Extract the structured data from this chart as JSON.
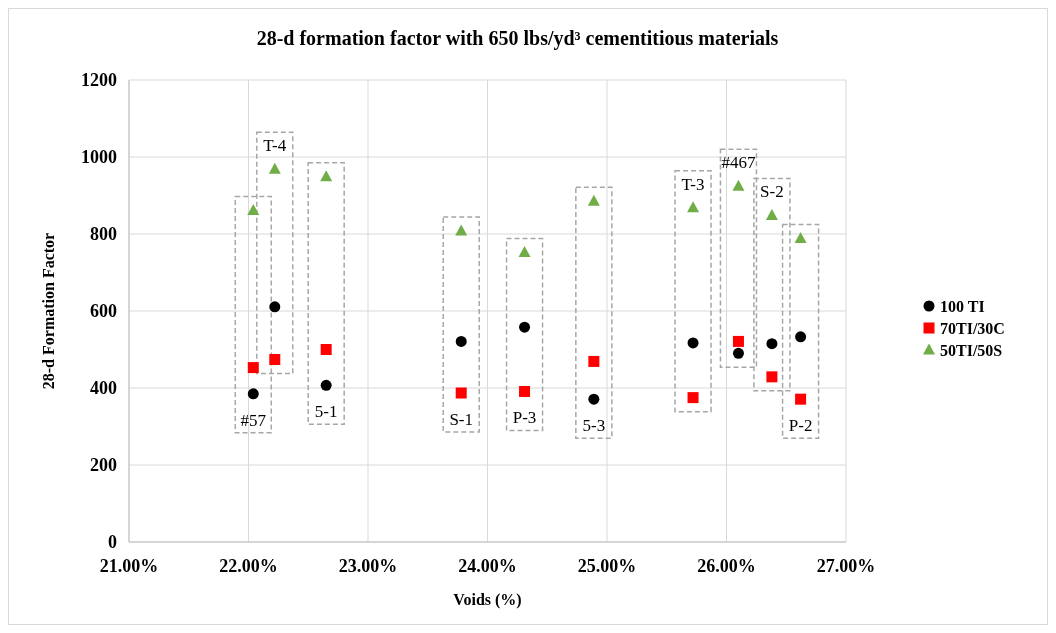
{
  "chart_data": {
    "type": "scatter",
    "title": "28-d formation factor with 650 lbs/yd³ cementitious materials",
    "xlabel": "Voids (%)",
    "ylabel": "28-d Formation Factor",
    "xlim": [
      21,
      27
    ],
    "xticks": [
      {
        "value": 21,
        "label": "21.00%"
      },
      {
        "value": 22,
        "label": "22.00%"
      },
      {
        "value": 23,
        "label": "23.00%"
      },
      {
        "value": 24,
        "label": "24.00%"
      },
      {
        "value": 25,
        "label": "25.00%"
      },
      {
        "value": 26,
        "label": "26.00%"
      },
      {
        "value": 27,
        "label": "27.00%"
      }
    ],
    "ylim": [
      0,
      1200
    ],
    "yticks": [
      0,
      200,
      400,
      600,
      800,
      1000,
      1200
    ],
    "grid": true,
    "legend": "right",
    "x": [
      22.04,
      22.22,
      22.65,
      23.78,
      24.31,
      24.89,
      25.72,
      26.1,
      26.38,
      26.62
    ],
    "series": [
      {
        "name": "100 TI",
        "color": "#000000",
        "marker": "circle",
        "values": [
          385,
          611,
          407,
          521,
          558,
          371,
          517,
          490,
          515,
          533
        ]
      },
      {
        "name": "70TI/30C",
        "color": "#ff0000",
        "marker": "square",
        "values": [
          453,
          474,
          500,
          387,
          391,
          469,
          375,
          521,
          429,
          371
        ]
      },
      {
        "name": "50TI/50S",
        "color": "#70ad47",
        "marker": "triangle",
        "values": [
          861,
          968,
          949,
          808,
          752,
          885,
          868,
          924,
          848,
          788
        ]
      }
    ],
    "annotations": [
      {
        "text": "#57",
        "x": 22.04,
        "y": 385
      },
      {
        "text": "T-4",
        "x": 22.22,
        "y": 968
      },
      {
        "text": "5-1",
        "x": 22.65,
        "y": 407
      },
      {
        "text": "S-1",
        "x": 23.78,
        "y": 387
      },
      {
        "text": "P-3",
        "x": 24.31,
        "y": 391
      },
      {
        "text": "5-3",
        "x": 24.89,
        "y": 371
      },
      {
        "text": "T-3",
        "x": 25.72,
        "y": 868
      },
      {
        "text": "#467",
        "x": 26.1,
        "y": 924
      },
      {
        "text": "S-2",
        "x": 26.38,
        "y": 848
      },
      {
        "text": "P-2",
        "x": 26.62,
        "y": 371
      }
    ]
  }
}
